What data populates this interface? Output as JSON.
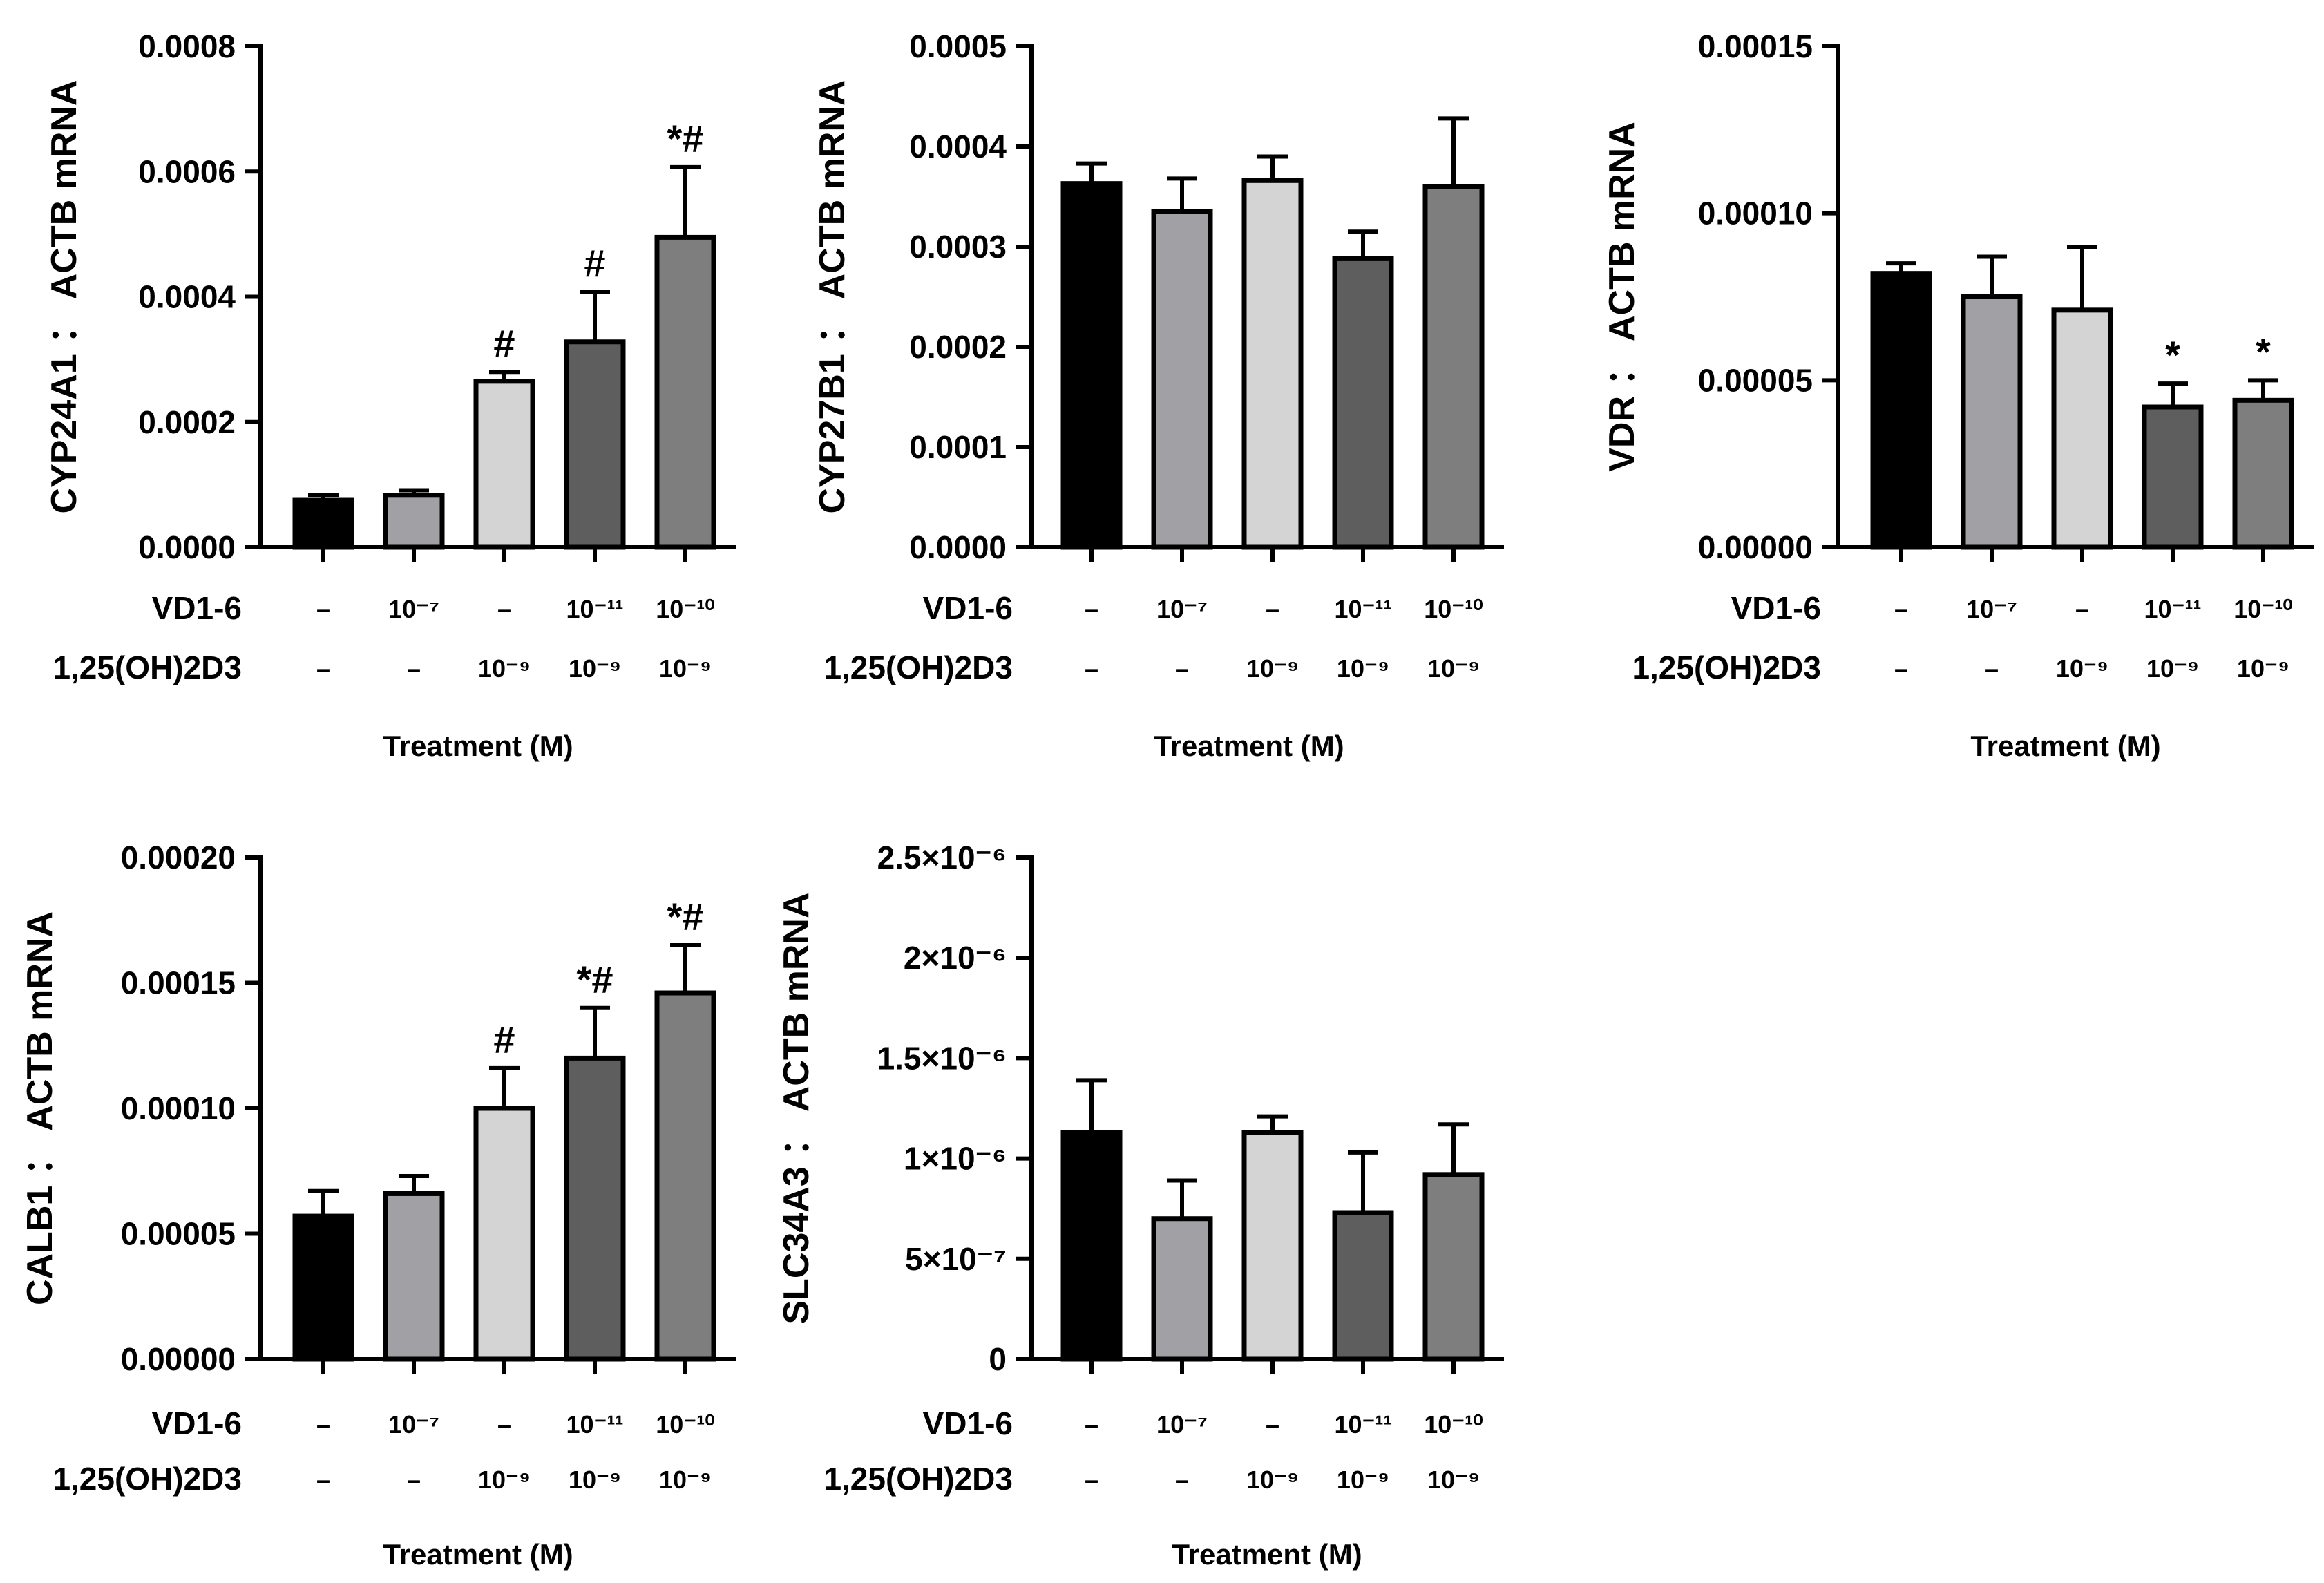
{
  "chart_data": [
    {
      "type": "bar",
      "ylabel": "CYP24A1 ： ACTB mRNA",
      "xlabel": "Treatment (M)",
      "ylim": [
        0,
        0.0008
      ],
      "yticks": [
        "0.0000",
        "0.0002",
        "0.0004",
        "0.0006",
        "0.0008"
      ],
      "values": [
        7.5e-05,
        8.3e-05,
        0.000265,
        0.000328,
        0.000495
      ],
      "errors": [
        8e-06,
        8e-06,
        1.5e-05,
        8e-05,
        0.000112
      ],
      "significance": [
        "",
        "",
        "#",
        "#",
        "*#"
      ]
    },
    {
      "type": "bar",
      "ylabel": "CYP27B1 ： ACTB mRNA",
      "xlabel": "Treatment (M)",
      "ylim": [
        0,
        0.0005
      ],
      "yticks": [
        "0.0000",
        "0.0001",
        "0.0002",
        "0.0003",
        "0.0004",
        "0.0005"
      ],
      "values": [
        0.000363,
        0.000335,
        0.000366,
        0.000288,
        0.00036
      ],
      "errors": [
        2e-05,
        3.3e-05,
        2.4e-05,
        2.7e-05,
        6.8e-05
      ],
      "significance": [
        "",
        "",
        "",
        "",
        ""
      ]
    },
    {
      "type": "bar",
      "ylabel": "VDR ： ACTB mRNA",
      "xlabel": "Treatment (M)",
      "ylim": [
        0,
        0.00015
      ],
      "yticks": [
        "0.00000",
        "0.00005",
        "0.00010",
        "0.00015"
      ],
      "values": [
        8.2e-05,
        7.5e-05,
        7.1e-05,
        4.2e-05,
        4.4e-05
      ],
      "errors": [
        3e-06,
        1.2e-05,
        1.9e-05,
        7e-06,
        6e-06
      ],
      "significance": [
        "",
        "",
        "",
        "*",
        "*"
      ]
    },
    {
      "type": "bar",
      "ylabel": "CALB1 ： ACTB mRNA",
      "xlabel": "Treatment (M)",
      "ylim": [
        0,
        0.0002
      ],
      "yticks": [
        "0.00000",
        "0.00005",
        "0.00010",
        "0.00015",
        "0.00020"
      ],
      "values": [
        5.7e-05,
        6.6e-05,
        0.0001,
        0.00012,
        0.000146
      ],
      "errors": [
        1e-05,
        7e-06,
        1.6e-05,
        2e-05,
        1.9e-05
      ],
      "significance": [
        "",
        "",
        "#",
        "*#",
        "*#"
      ]
    },
    {
      "type": "bar",
      "ylabel": "SLC34A3 ： ACTB mRNA",
      "xlabel": "Treatment (M)",
      "ylim": [
        0,
        2.5e-06
      ],
      "yticks": [
        "0",
        "5×10⁻⁷",
        "1×10⁻⁶",
        "1.5×10⁻⁶",
        "2×10⁻⁶",
        "2.5×10⁻⁶"
      ],
      "values": [
        1.13e-06,
        7e-07,
        1.13e-06,
        7.3e-07,
        9.2e-07
      ],
      "errors": [
        2.6e-07,
        1.9e-07,
        8e-08,
        3e-07,
        2.5e-07
      ],
      "significance": [
        "",
        "",
        "",
        "",
        ""
      ]
    }
  ],
  "treatments": {
    "row1_label": "VD1-6",
    "row2_label": "1,25(OH)2D3",
    "row1": [
      "–",
      "10⁻⁷",
      "–",
      "10⁻¹¹",
      "10⁻¹⁰"
    ],
    "row2": [
      "–",
      "–",
      "10⁻⁹",
      "10⁻⁹",
      "10⁻⁹"
    ]
  },
  "colors": [
    "#000000",
    "#a0a0a5",
    "#d4d4d4",
    "#5e5e5e",
    "#7e7e7e"
  ]
}
